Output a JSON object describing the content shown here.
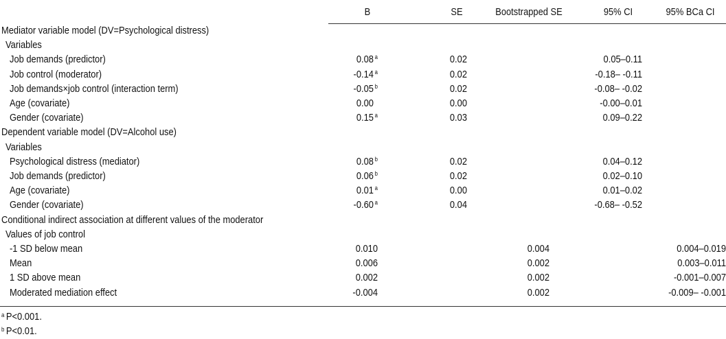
{
  "headers": {
    "b": "B",
    "se": "SE",
    "boot_se": "Bootstrapped SE",
    "ci": "95% CI",
    "bca_ci": "95% BCa CI"
  },
  "rows": [
    {
      "label": "Mediator variable model (DV=Psychological distress)",
      "indent": 0,
      "b": "",
      "sup": "",
      "se": "",
      "boot": "",
      "ci": "",
      "bca": ""
    },
    {
      "label": "Variables",
      "indent": 1,
      "b": "",
      "sup": "",
      "se": "",
      "boot": "",
      "ci": "",
      "bca": ""
    },
    {
      "label": "Job demands (predictor)",
      "indent": 2,
      "b": "0.08",
      "sup": "a",
      "se": "0.02",
      "boot": "",
      "ci": "0.05–0.11",
      "bca": ""
    },
    {
      "label": "Job control (moderator)",
      "indent": 2,
      "b": "-0.14",
      "sup": "a",
      "se": "0.02",
      "boot": "",
      "ci": "-0.18– -0.11",
      "bca": ""
    },
    {
      "label": "Job demands×job control (interaction term)",
      "indent": 2,
      "b": "-0.05",
      "sup": "b",
      "se": "0.02",
      "boot": "",
      "ci": "-0.08– -0.02",
      "bca": ""
    },
    {
      "label": "Age (covariate)",
      "indent": 2,
      "b": "0.00",
      "sup": "",
      "se": "0.00",
      "boot": "",
      "ci": "-0.00–0.01",
      "bca": ""
    },
    {
      "label": "Gender (covariate)",
      "indent": 2,
      "b": "0.15",
      "sup": "a",
      "se": "0.03",
      "boot": "",
      "ci": "0.09–0.22",
      "bca": ""
    },
    {
      "label": "Dependent variable model (DV=Alcohol use)",
      "indent": 0,
      "b": "",
      "sup": "",
      "se": "",
      "boot": "",
      "ci": "",
      "bca": ""
    },
    {
      "label": "Variables",
      "indent": 1,
      "b": "",
      "sup": "",
      "se": "",
      "boot": "",
      "ci": "",
      "bca": ""
    },
    {
      "label": "Psychological distress (mediator)",
      "indent": 2,
      "b": "0.08",
      "sup": "b",
      "se": "0.02",
      "boot": "",
      "ci": "0.04–0.12",
      "bca": ""
    },
    {
      "label": "Job demands (predictor)",
      "indent": 2,
      "b": "0.06",
      "sup": "b",
      "se": "0.02",
      "boot": "",
      "ci": "0.02–0.10",
      "bca": ""
    },
    {
      "label": "Age (covariate)",
      "indent": 2,
      "b": "0.01",
      "sup": "a",
      "se": "0.00",
      "boot": "",
      "ci": "0.01–0.02",
      "bca": ""
    },
    {
      "label": "Gender (covariate)",
      "indent": 2,
      "b": "-0.60",
      "sup": "a",
      "se": "0.04",
      "boot": "",
      "ci": "-0.68– -0.52",
      "bca": ""
    },
    {
      "label": "Conditional indirect association at different values of the moderator",
      "indent": 0,
      "b": "",
      "sup": "",
      "se": "",
      "boot": "",
      "ci": "",
      "bca": ""
    },
    {
      "label": "Values of job control",
      "indent": 1,
      "b": "",
      "sup": "",
      "se": "",
      "boot": "",
      "ci": "",
      "bca": ""
    },
    {
      "label": "-1 SD below mean",
      "indent": 2,
      "b": "0.010",
      "sup": "",
      "se": "",
      "boot": "0.004",
      "ci": "",
      "bca": "0.004–0.019"
    },
    {
      "label": "Mean",
      "indent": 2,
      "b": "0.006",
      "sup": "",
      "se": "",
      "boot": "0.002",
      "ci": "",
      "bca": "0.003–0.011"
    },
    {
      "label": "1 SD above mean",
      "indent": 2,
      "b": "0.002",
      "sup": "",
      "se": "",
      "boot": "0.002",
      "ci": "",
      "bca": "-0.001–0.007"
    },
    {
      "label": "Moderated mediation effect",
      "indent": 2,
      "b": "-0.004",
      "sup": "",
      "se": "",
      "boot": "0.002",
      "ci": "",
      "bca": "-0.009– -0.001"
    }
  ],
  "footnotes": [
    {
      "mark": "a",
      "text": "P<0.001."
    },
    {
      "mark": "b",
      "text": "P<0.01."
    }
  ]
}
